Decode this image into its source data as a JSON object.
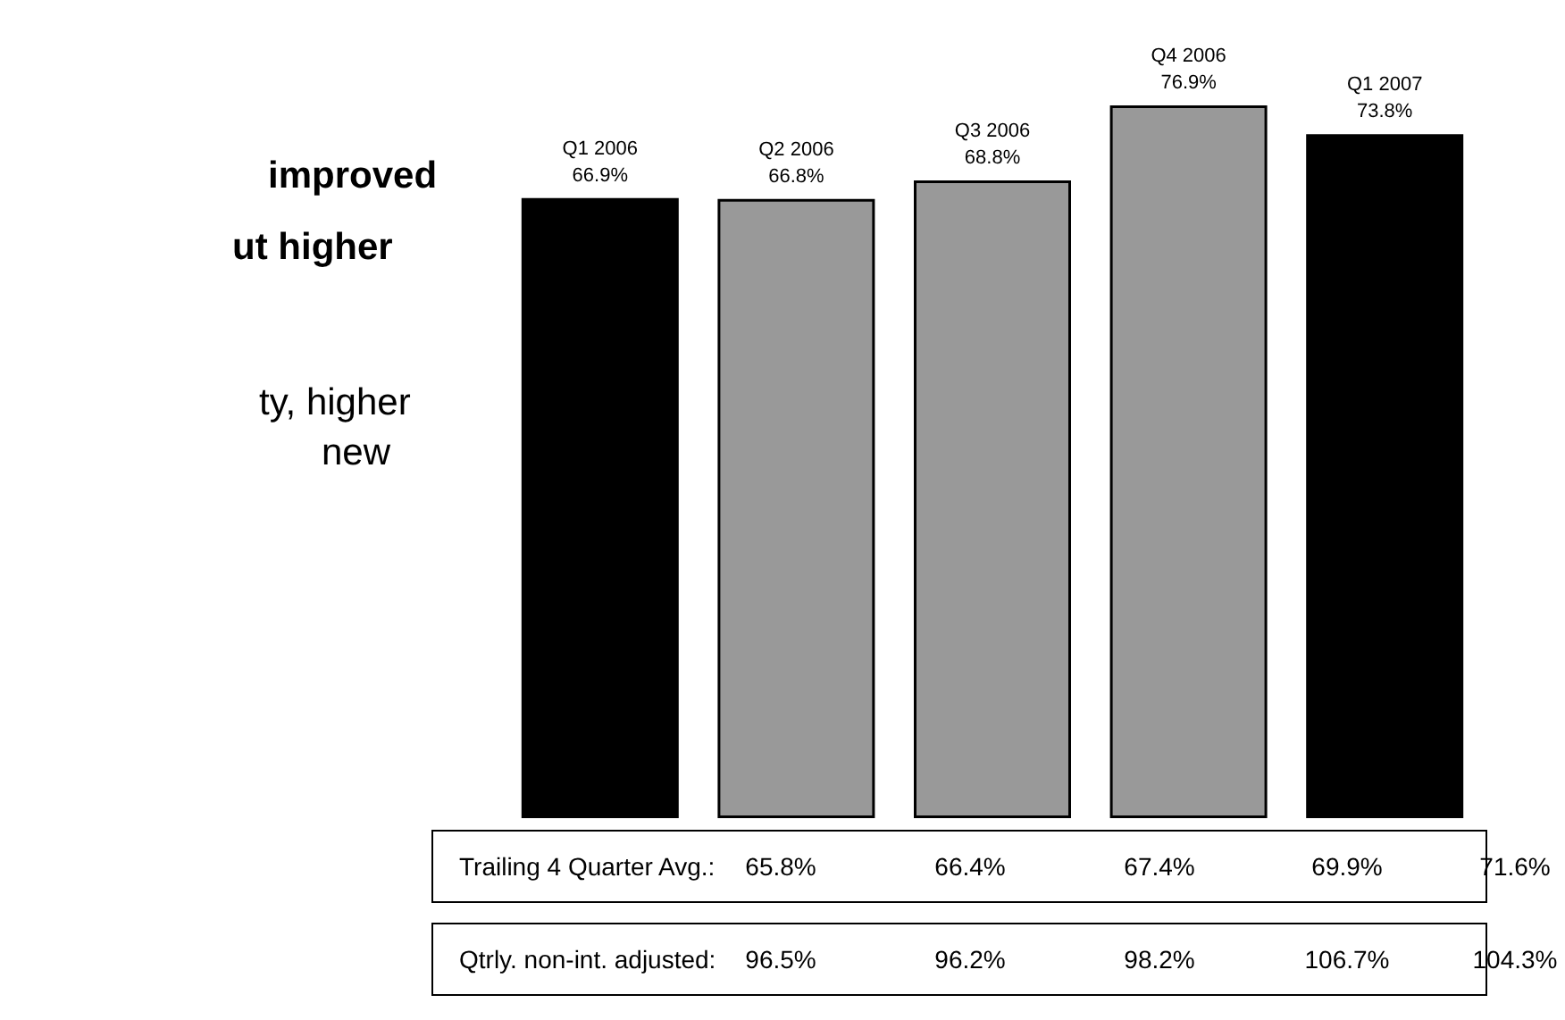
{
  "chart_data": {
    "type": "bar",
    "categories": [
      "Q1 2006",
      "Q2 2006",
      "Q3 2006",
      "Q4 2006",
      "Q1 2007"
    ],
    "values": [
      66.9,
      66.8,
      68.8,
      76.9,
      73.8
    ],
    "colors": [
      "#000000",
      "#999999",
      "#999999",
      "#999999",
      "#000000"
    ],
    "value_labels": [
      "66.9%",
      "66.8%",
      "68.8%",
      "76.9%",
      "73.8%"
    ],
    "annotations": [
      "improved",
      "ut higher",
      "ty, higher",
      "new",
      "Trailing 4 Quarter Avg.:",
      "65.8%",
      "66.4%",
      "67.4%",
      "69.9%",
      "71.6%",
      "Qtrly. non-int. adjusted:",
      "96.5%",
      "96.2%",
      "98.2%",
      "106.7%",
      "104.3%"
    ]
  }
}
